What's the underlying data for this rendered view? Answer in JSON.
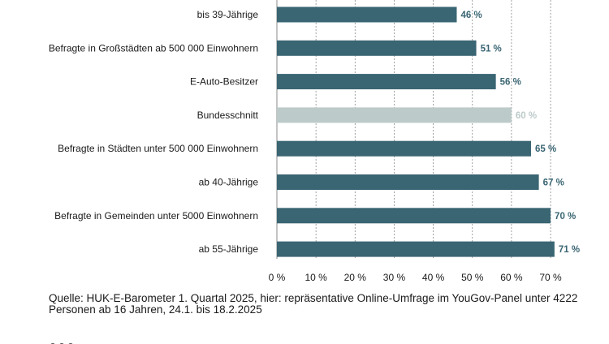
{
  "chart_data": {
    "type": "bar",
    "orientation": "horizontal",
    "categories": [
      "bis 39-Jährige",
      "Befragte in Großstädten ab 500 000 Einwohnern",
      "E-Auto-Besitzer",
      "Bundesschnitt",
      "Befragte in Städten unter 500 000 Einwohnern",
      "ab 40-Jährige",
      "Befragte in Gemeinden unter 5000 Einwohnern",
      "ab 55-Jährige"
    ],
    "values": [
      46,
      51,
      56,
      60,
      65,
      67,
      70,
      71
    ],
    "value_labels": [
      "46 %",
      "51 %",
      "56 %",
      "60 %",
      "65 %",
      "67 %",
      "70 %",
      "71 %"
    ],
    "highlight_index": 3,
    "xlim": [
      0,
      70
    ],
    "xticks": [
      0,
      10,
      20,
      30,
      40,
      50,
      60,
      70
    ],
    "xtick_labels": [
      "0 %",
      "10 %",
      "20 %",
      "30 %",
      "40 %",
      "50 %",
      "60 %",
      "70 %"
    ],
    "grid": "vertical-dashed",
    "colors": {
      "bar": "#3a6573",
      "highlight": "#bccac9",
      "grid": "#8a8a8a"
    }
  },
  "source_text": "Quelle: HUK-E-Barometer 1. Quartal 2025, hier: repräsentative Online-Umfrage im YouGov-Panel unter 4222 Personen ab 16 Jahren, 24.1. bis 18.2.2025"
}
